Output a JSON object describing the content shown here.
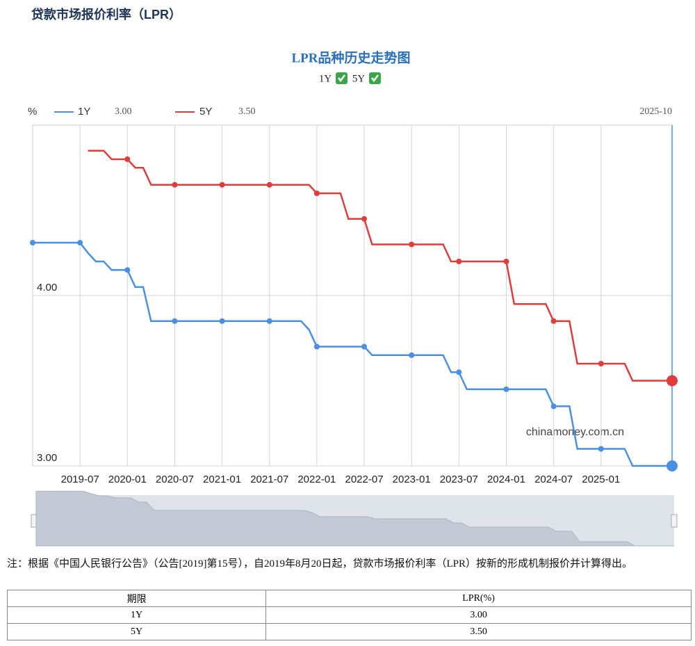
{
  "header": {
    "title": "贷款市场报价利率（LPR）"
  },
  "chart_data": {
    "type": "line",
    "title": "LPR品种历史走势图",
    "y_unit": "%",
    "x": [
      "2019-01",
      "2019-02",
      "2019-03",
      "2019-04",
      "2019-05",
      "2019-06",
      "2019-07",
      "2019-08",
      "2019-09",
      "2019-10",
      "2019-11",
      "2019-12",
      "2020-01",
      "2020-02",
      "2020-03",
      "2020-04",
      "2020-05",
      "2020-06",
      "2020-07",
      "2020-08",
      "2020-09",
      "2020-10",
      "2020-11",
      "2020-12",
      "2021-01",
      "2021-02",
      "2021-03",
      "2021-04",
      "2021-05",
      "2021-06",
      "2021-07",
      "2021-08",
      "2021-09",
      "2021-10",
      "2021-11",
      "2021-12",
      "2022-01",
      "2022-02",
      "2022-03",
      "2022-04",
      "2022-05",
      "2022-06",
      "2022-07",
      "2022-08",
      "2022-09",
      "2022-10",
      "2022-11",
      "2022-12",
      "2023-01",
      "2023-02",
      "2023-03",
      "2023-04",
      "2023-05",
      "2023-06",
      "2023-07",
      "2023-08",
      "2023-09",
      "2023-10",
      "2023-11",
      "2023-12",
      "2024-01",
      "2024-02",
      "2024-03",
      "2024-04",
      "2024-05",
      "2024-06",
      "2024-07",
      "2024-08",
      "2024-09",
      "2024-10",
      "2024-11",
      "2024-12",
      "2025-01",
      "2025-02",
      "2025-03",
      "2025-04",
      "2025-05",
      "2025-06",
      "2025-07",
      "2025-08",
      "2025-09",
      "2025-10"
    ],
    "xticks": [
      "2019-07",
      "2020-01",
      "2020-07",
      "2021-01",
      "2021-07",
      "2022-01",
      "2022-07",
      "2023-01",
      "2023-07",
      "2024-01",
      "2024-07",
      "2025-01"
    ],
    "ylim": [
      3,
      5
    ],
    "yticks": [
      {
        "value": 3,
        "label": "3.00"
      },
      {
        "value": 4,
        "label": "4.00"
      }
    ],
    "grid": true,
    "cursor": {
      "x": "2025-10",
      "labels": [
        "3.00",
        "3.50"
      ]
    },
    "watermark": "chinamoney.com.cn",
    "series": [
      {
        "name": "1Y",
        "color": "#4a90e2",
        "values": [
          4.31,
          4.31,
          4.31,
          4.31,
          4.31,
          4.31,
          4.31,
          4.25,
          4.2,
          4.2,
          4.15,
          4.15,
          4.15,
          4.05,
          4.05,
          3.85,
          3.85,
          3.85,
          3.85,
          3.85,
          3.85,
          3.85,
          3.85,
          3.85,
          3.85,
          3.85,
          3.85,
          3.85,
          3.85,
          3.85,
          3.85,
          3.85,
          3.85,
          3.85,
          3.85,
          3.8,
          3.7,
          3.7,
          3.7,
          3.7,
          3.7,
          3.7,
          3.7,
          3.65,
          3.65,
          3.65,
          3.65,
          3.65,
          3.65,
          3.65,
          3.65,
          3.65,
          3.65,
          3.55,
          3.55,
          3.45,
          3.45,
          3.45,
          3.45,
          3.45,
          3.45,
          3.45,
          3.45,
          3.45,
          3.45,
          3.45,
          3.35,
          3.35,
          3.35,
          3.1,
          3.1,
          3.1,
          3.1,
          3.1,
          3.1,
          3.1,
          3,
          3,
          3,
          3,
          3,
          3
        ]
      },
      {
        "name": "5Y",
        "color": "#e03c3c",
        "values": [
          null,
          null,
          null,
          null,
          null,
          null,
          null,
          4.85,
          4.85,
          4.85,
          4.8,
          4.8,
          4.8,
          4.75,
          4.75,
          4.65,
          4.65,
          4.65,
          4.65,
          4.65,
          4.65,
          4.65,
          4.65,
          4.65,
          4.65,
          4.65,
          4.65,
          4.65,
          4.65,
          4.65,
          4.65,
          4.65,
          4.65,
          4.65,
          4.65,
          4.65,
          4.6,
          4.6,
          4.6,
          4.6,
          4.45,
          4.45,
          4.45,
          4.3,
          4.3,
          4.3,
          4.3,
          4.3,
          4.3,
          4.3,
          4.3,
          4.3,
          4.3,
          4.2,
          4.2,
          4.2,
          4.2,
          4.2,
          4.2,
          4.2,
          4.2,
          3.95,
          3.95,
          3.95,
          3.95,
          3.95,
          3.85,
          3.85,
          3.85,
          3.6,
          3.6,
          3.6,
          3.6,
          3.6,
          3.6,
          3.6,
          3.5,
          3.5,
          3.5,
          3.5,
          3.5,
          3.5
        ]
      }
    ]
  },
  "note": "注：根据《中国人民银行公告》（公告[2019]第15号），自2019年8月20日起，贷款市场报价利率（LPR）按新的形成机制报价并计算得出。",
  "table": {
    "header": [
      "期限",
      "LPR(%)"
    ],
    "rows": [
      [
        "1Y",
        "3.00"
      ],
      [
        "5Y",
        "3.50"
      ]
    ]
  }
}
